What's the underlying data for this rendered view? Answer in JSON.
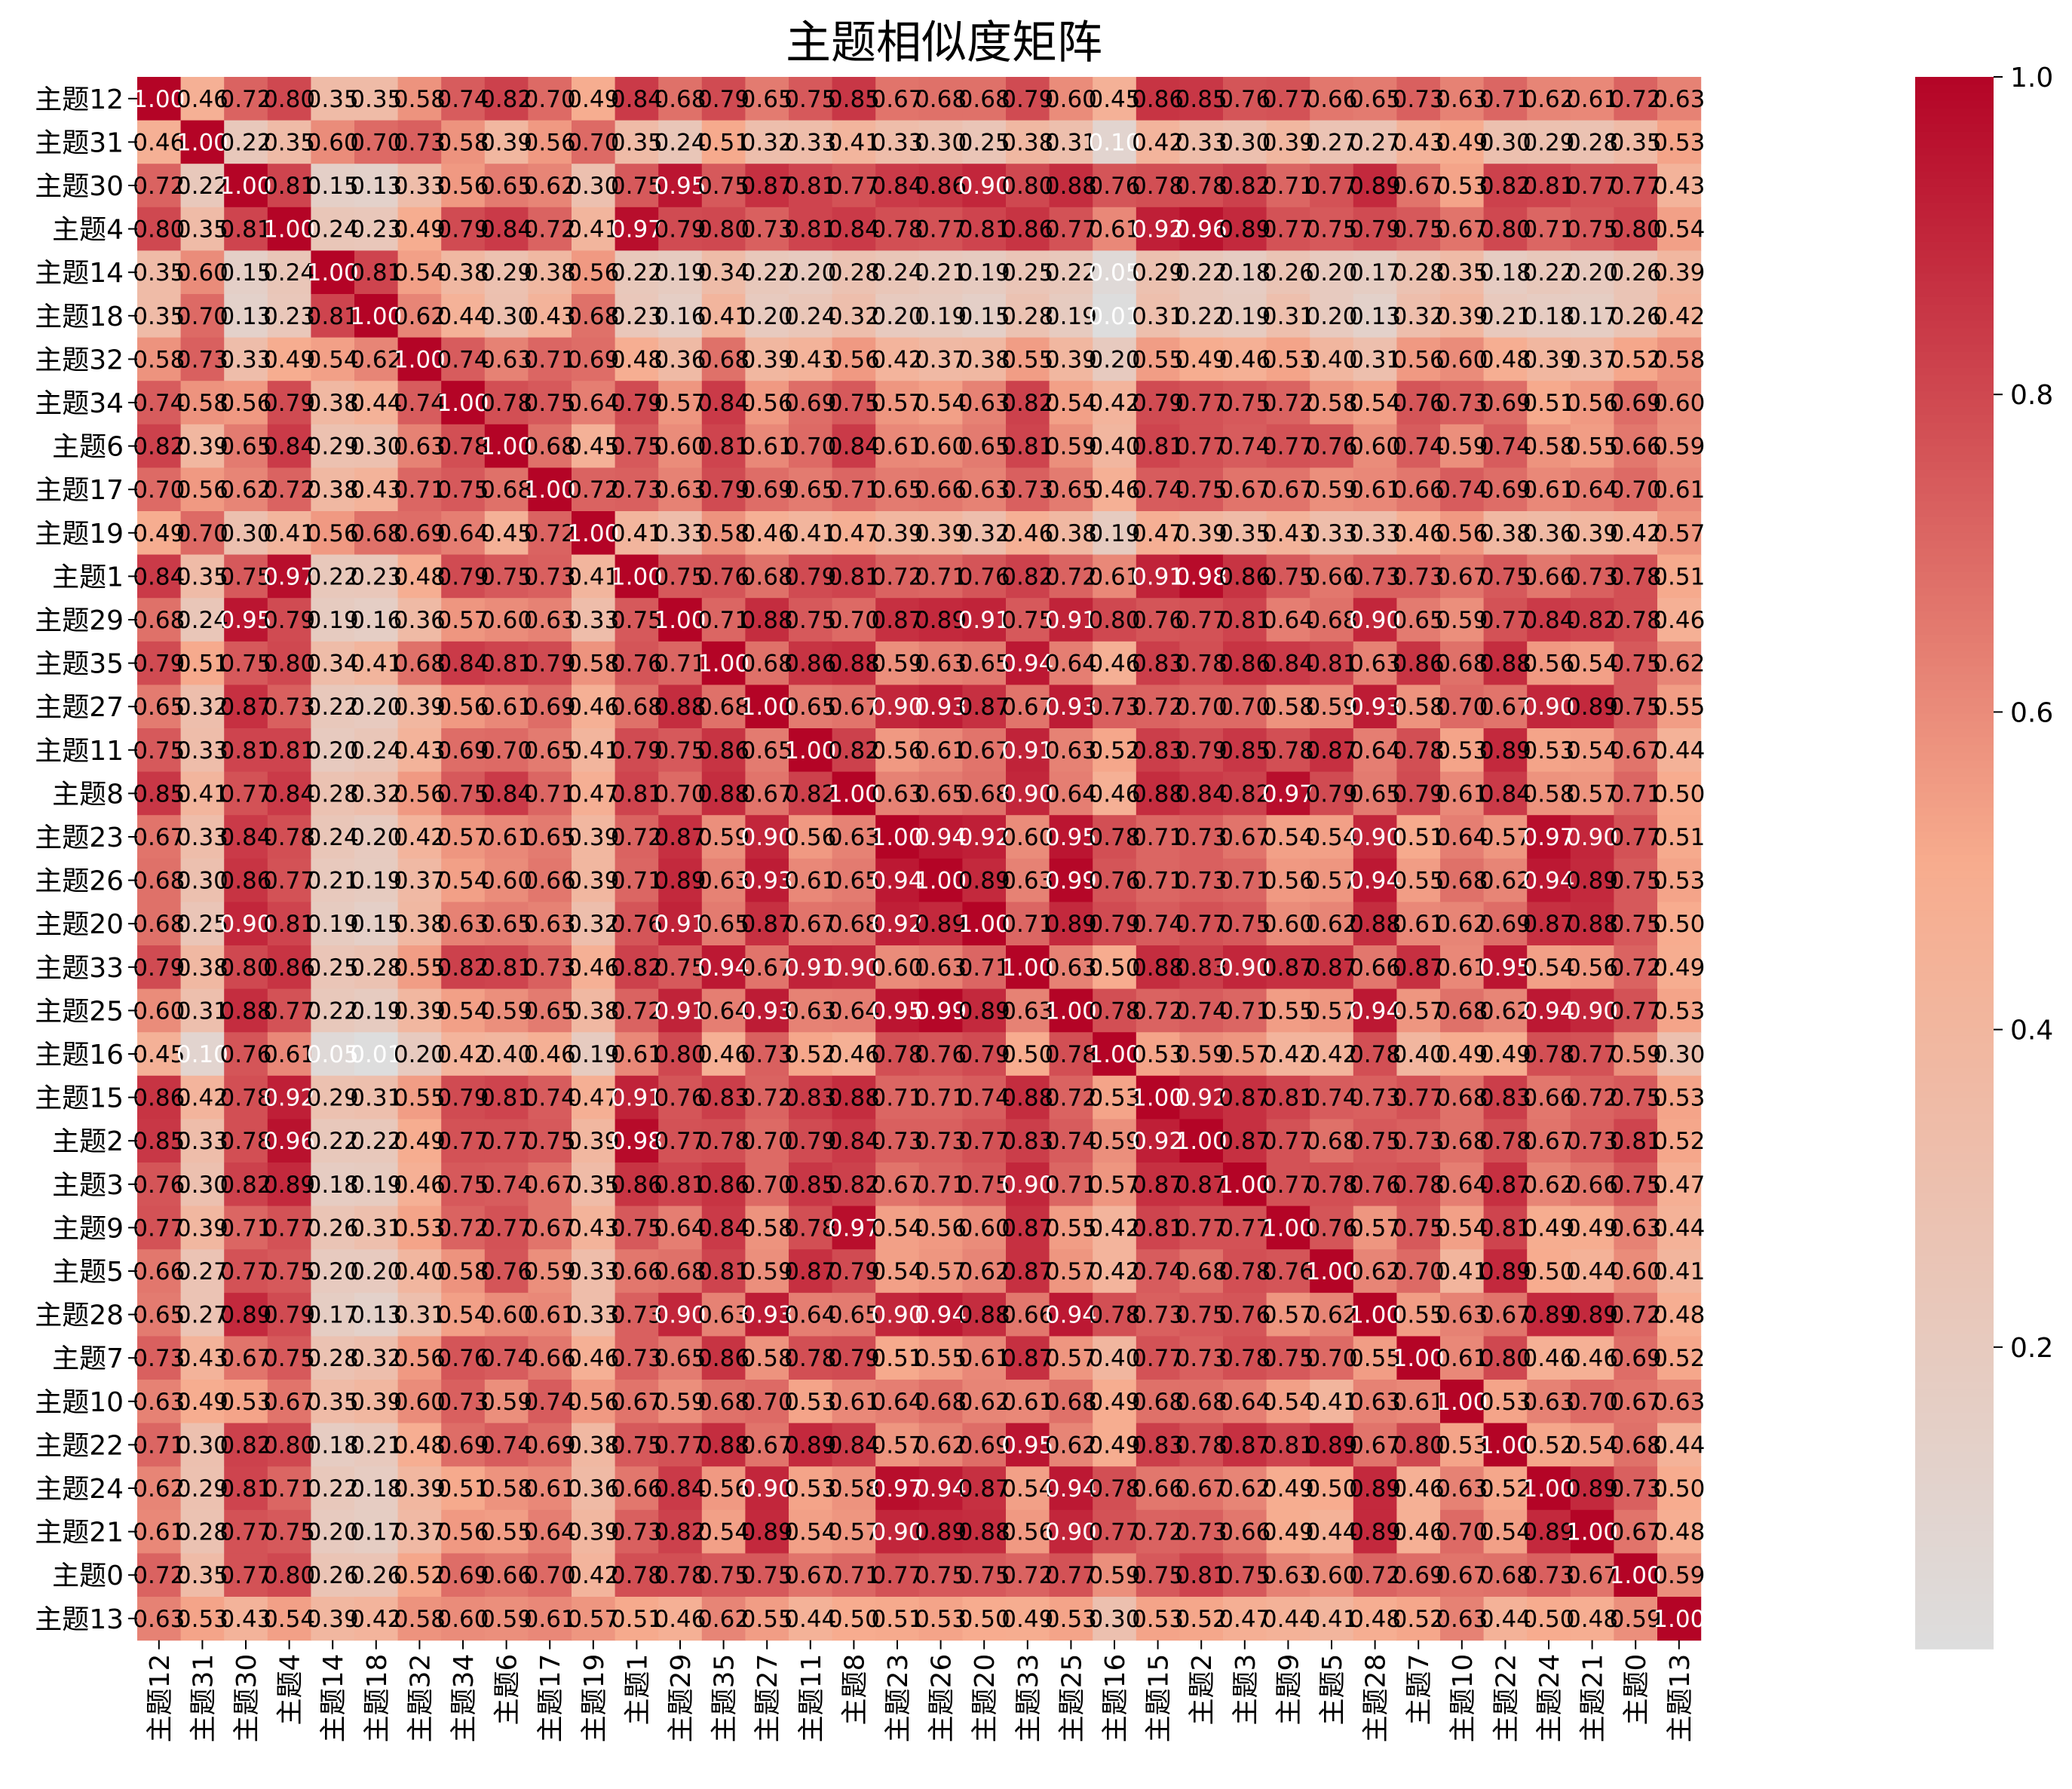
{
  "chart_data": {
    "type": "heatmap",
    "title": "主题相似度矩阵",
    "xlabel": "",
    "ylabel": "",
    "labels": [
      "主题12",
      "主题31",
      "主题30",
      "主题4",
      "主题14",
      "主题18",
      "主题32",
      "主题34",
      "主题6",
      "主题17",
      "主题19",
      "主题1",
      "主题29",
      "主题35",
      "主题27",
      "主题11",
      "主题8",
      "主题23",
      "主题26",
      "主题20",
      "主题33",
      "主题25",
      "主题16",
      "主题15",
      "主题2",
      "主题3",
      "主题9",
      "主题5",
      "主题28",
      "主题7",
      "主题10",
      "主题22",
      "主题24",
      "主题21",
      "主题0",
      "主题13"
    ],
    "matrix": [
      [
        1.0,
        0.46,
        0.72,
        0.8,
        0.35,
        0.35,
        0.58,
        0.74,
        0.82,
        0.7,
        0.49,
        0.84,
        0.68,
        0.79,
        0.65,
        0.75,
        0.85,
        0.67,
        0.68,
        0.68,
        0.79,
        0.6,
        0.45,
        0.86,
        0.85,
        0.76,
        0.77,
        0.66,
        0.65,
        0.73,
        0.63,
        0.71,
        0.62,
        0.61,
        0.72,
        0.63
      ],
      [
        0.46,
        1.0,
        0.22,
        0.35,
        0.6,
        0.7,
        0.73,
        0.58,
        0.39,
        0.56,
        0.7,
        0.35,
        0.24,
        0.51,
        0.32,
        0.33,
        0.41,
        0.33,
        0.3,
        0.25,
        0.38,
        0.31,
        0.1,
        0.42,
        0.33,
        0.3,
        0.39,
        0.27,
        0.27,
        0.43,
        0.49,
        0.3,
        0.29,
        0.28,
        0.35,
        0.53
      ],
      [
        0.72,
        0.22,
        1.0,
        0.81,
        0.15,
        0.13,
        0.33,
        0.56,
        0.65,
        0.62,
        0.3,
        0.75,
        0.95,
        0.75,
        0.87,
        0.81,
        0.77,
        0.84,
        0.86,
        0.9,
        0.8,
        0.88,
        0.76,
        0.78,
        0.78,
        0.82,
        0.71,
        0.77,
        0.89,
        0.67,
        0.53,
        0.82,
        0.81,
        0.77,
        0.77,
        0.43
      ],
      [
        0.8,
        0.35,
        0.81,
        1.0,
        0.24,
        0.23,
        0.49,
        0.79,
        0.84,
        0.72,
        0.41,
        0.97,
        0.79,
        0.8,
        0.73,
        0.81,
        0.84,
        0.78,
        0.77,
        0.81,
        0.86,
        0.77,
        0.61,
        0.92,
        0.96,
        0.89,
        0.77,
        0.75,
        0.79,
        0.75,
        0.67,
        0.8,
        0.71,
        0.75,
        0.8,
        0.54
      ],
      [
        0.35,
        0.6,
        0.15,
        0.24,
        1.0,
        0.81,
        0.54,
        0.38,
        0.29,
        0.38,
        0.56,
        0.22,
        0.19,
        0.34,
        0.22,
        0.2,
        0.28,
        0.24,
        0.21,
        0.19,
        0.25,
        0.22,
        0.05,
        0.29,
        0.22,
        0.18,
        0.26,
        0.2,
        0.17,
        0.28,
        0.35,
        0.18,
        0.22,
        0.2,
        0.26,
        0.39
      ],
      [
        0.35,
        0.7,
        0.13,
        0.23,
        0.81,
        1.0,
        0.62,
        0.44,
        0.3,
        0.43,
        0.68,
        0.23,
        0.16,
        0.41,
        0.2,
        0.24,
        0.32,
        0.2,
        0.19,
        0.15,
        0.28,
        0.19,
        0.01,
        0.31,
        0.22,
        0.19,
        0.31,
        0.2,
        0.13,
        0.32,
        0.39,
        0.21,
        0.18,
        0.17,
        0.26,
        0.42
      ],
      [
        0.58,
        0.73,
        0.33,
        0.49,
        0.54,
        0.62,
        1.0,
        0.74,
        0.63,
        0.71,
        0.69,
        0.48,
        0.36,
        0.68,
        0.39,
        0.43,
        0.56,
        0.42,
        0.37,
        0.38,
        0.55,
        0.39,
        0.2,
        0.55,
        0.49,
        0.46,
        0.53,
        0.4,
        0.31,
        0.56,
        0.6,
        0.48,
        0.39,
        0.37,
        0.52,
        0.58
      ],
      [
        0.74,
        0.58,
        0.56,
        0.79,
        0.38,
        0.44,
        0.74,
        1.0,
        0.78,
        0.75,
        0.64,
        0.79,
        0.57,
        0.84,
        0.56,
        0.69,
        0.75,
        0.57,
        0.54,
        0.63,
        0.82,
        0.54,
        0.42,
        0.79,
        0.77,
        0.75,
        0.72,
        0.58,
        0.54,
        0.76,
        0.73,
        0.69,
        0.51,
        0.56,
        0.69,
        0.6
      ],
      [
        0.82,
        0.39,
        0.65,
        0.84,
        0.29,
        0.3,
        0.63,
        0.78,
        1.0,
        0.68,
        0.45,
        0.75,
        0.6,
        0.81,
        0.61,
        0.7,
        0.84,
        0.61,
        0.6,
        0.65,
        0.81,
        0.59,
        0.4,
        0.81,
        0.77,
        0.74,
        0.77,
        0.76,
        0.6,
        0.74,
        0.59,
        0.74,
        0.58,
        0.55,
        0.66,
        0.59
      ],
      [
        0.7,
        0.56,
        0.62,
        0.72,
        0.38,
        0.43,
        0.71,
        0.75,
        0.68,
        1.0,
        0.72,
        0.73,
        0.63,
        0.79,
        0.69,
        0.65,
        0.71,
        0.65,
        0.66,
        0.63,
        0.73,
        0.65,
        0.46,
        0.74,
        0.75,
        0.67,
        0.67,
        0.59,
        0.61,
        0.66,
        0.74,
        0.69,
        0.61,
        0.64,
        0.7,
        0.61
      ],
      [
        0.49,
        0.7,
        0.3,
        0.41,
        0.56,
        0.68,
        0.69,
        0.64,
        0.45,
        0.72,
        1.0,
        0.41,
        0.33,
        0.58,
        0.46,
        0.41,
        0.47,
        0.39,
        0.39,
        0.32,
        0.46,
        0.38,
        0.19,
        0.47,
        0.39,
        0.35,
        0.43,
        0.33,
        0.33,
        0.46,
        0.56,
        0.38,
        0.36,
        0.39,
        0.42,
        0.57
      ],
      [
        0.84,
        0.35,
        0.75,
        0.97,
        0.22,
        0.23,
        0.48,
        0.79,
        0.75,
        0.73,
        0.41,
        1.0,
        0.75,
        0.76,
        0.68,
        0.79,
        0.81,
        0.72,
        0.71,
        0.76,
        0.82,
        0.72,
        0.61,
        0.91,
        0.98,
        0.86,
        0.75,
        0.66,
        0.73,
        0.73,
        0.67,
        0.75,
        0.66,
        0.73,
        0.78,
        0.51
      ],
      [
        0.68,
        0.24,
        0.95,
        0.79,
        0.19,
        0.16,
        0.36,
        0.57,
        0.6,
        0.63,
        0.33,
        0.75,
        1.0,
        0.71,
        0.88,
        0.75,
        0.7,
        0.87,
        0.89,
        0.91,
        0.75,
        0.91,
        0.8,
        0.76,
        0.77,
        0.81,
        0.64,
        0.68,
        0.9,
        0.65,
        0.59,
        0.77,
        0.84,
        0.82,
        0.78,
        0.46
      ],
      [
        0.79,
        0.51,
        0.75,
        0.8,
        0.34,
        0.41,
        0.68,
        0.84,
        0.81,
        0.79,
        0.58,
        0.76,
        0.71,
        1.0,
        0.68,
        0.86,
        0.88,
        0.59,
        0.63,
        0.65,
        0.94,
        0.64,
        0.46,
        0.83,
        0.78,
        0.86,
        0.84,
        0.81,
        0.63,
        0.86,
        0.68,
        0.88,
        0.56,
        0.54,
        0.75,
        0.62
      ],
      [
        0.65,
        0.32,
        0.87,
        0.73,
        0.22,
        0.2,
        0.39,
        0.56,
        0.61,
        0.69,
        0.46,
        0.68,
        0.88,
        0.68,
        1.0,
        0.65,
        0.67,
        0.9,
        0.93,
        0.87,
        0.67,
        0.93,
        0.73,
        0.72,
        0.7,
        0.7,
        0.58,
        0.59,
        0.93,
        0.58,
        0.7,
        0.67,
        0.9,
        0.89,
        0.75,
        0.55
      ],
      [
        0.75,
        0.33,
        0.81,
        0.81,
        0.2,
        0.24,
        0.43,
        0.69,
        0.7,
        0.65,
        0.41,
        0.79,
        0.75,
        0.86,
        0.65,
        1.0,
        0.82,
        0.56,
        0.61,
        0.67,
        0.91,
        0.63,
        0.52,
        0.83,
        0.79,
        0.85,
        0.78,
        0.87,
        0.64,
        0.78,
        0.53,
        0.89,
        0.53,
        0.54,
        0.67,
        0.44
      ],
      [
        0.85,
        0.41,
        0.77,
        0.84,
        0.28,
        0.32,
        0.56,
        0.75,
        0.84,
        0.71,
        0.47,
        0.81,
        0.7,
        0.88,
        0.67,
        0.82,
        1.0,
        0.63,
        0.65,
        0.68,
        0.9,
        0.64,
        0.46,
        0.88,
        0.84,
        0.82,
        0.97,
        0.79,
        0.65,
        0.79,
        0.61,
        0.84,
        0.58,
        0.57,
        0.71,
        0.5
      ],
      [
        0.67,
        0.33,
        0.84,
        0.78,
        0.24,
        0.2,
        0.42,
        0.57,
        0.61,
        0.65,
        0.39,
        0.72,
        0.87,
        0.59,
        0.9,
        0.56,
        0.63,
        1.0,
        0.94,
        0.92,
        0.6,
        0.95,
        0.78,
        0.71,
        0.73,
        0.67,
        0.54,
        0.54,
        0.9,
        0.51,
        0.64,
        0.57,
        0.97,
        0.9,
        0.77,
        0.51
      ],
      [
        0.68,
        0.3,
        0.86,
        0.77,
        0.21,
        0.19,
        0.37,
        0.54,
        0.6,
        0.66,
        0.39,
        0.71,
        0.89,
        0.63,
        0.93,
        0.61,
        0.65,
        0.94,
        1.0,
        0.89,
        0.63,
        0.99,
        0.76,
        0.71,
        0.73,
        0.71,
        0.56,
        0.57,
        0.94,
        0.55,
        0.68,
        0.62,
        0.94,
        0.89,
        0.75,
        0.53
      ],
      [
        0.68,
        0.25,
        0.9,
        0.81,
        0.19,
        0.15,
        0.38,
        0.63,
        0.65,
        0.63,
        0.32,
        0.76,
        0.91,
        0.65,
        0.87,
        0.67,
        0.68,
        0.92,
        0.89,
        1.0,
        0.71,
        0.89,
        0.79,
        0.74,
        0.77,
        0.75,
        0.6,
        0.62,
        0.88,
        0.61,
        0.62,
        0.69,
        0.87,
        0.88,
        0.75,
        0.5
      ],
      [
        0.79,
        0.38,
        0.8,
        0.86,
        0.25,
        0.28,
        0.55,
        0.82,
        0.81,
        0.73,
        0.46,
        0.82,
        0.75,
        0.94,
        0.67,
        0.91,
        0.9,
        0.6,
        0.63,
        0.71,
        1.0,
        0.63,
        0.5,
        0.88,
        0.83,
        0.9,
        0.87,
        0.87,
        0.66,
        0.87,
        0.61,
        0.95,
        0.54,
        0.56,
        0.72,
        0.49
      ],
      [
        0.6,
        0.31,
        0.88,
        0.77,
        0.22,
        0.19,
        0.39,
        0.54,
        0.59,
        0.65,
        0.38,
        0.72,
        0.91,
        0.64,
        0.93,
        0.63,
        0.64,
        0.95,
        0.99,
        0.89,
        0.63,
        1.0,
        0.78,
        0.72,
        0.74,
        0.71,
        0.55,
        0.57,
        0.94,
        0.57,
        0.68,
        0.62,
        0.94,
        0.9,
        0.77,
        0.53
      ],
      [
        0.45,
        0.1,
        0.76,
        0.61,
        0.05,
        0.01,
        0.2,
        0.42,
        0.4,
        0.46,
        0.19,
        0.61,
        0.8,
        0.46,
        0.73,
        0.52,
        0.46,
        0.78,
        0.76,
        0.79,
        0.5,
        0.78,
        1.0,
        0.53,
        0.59,
        0.57,
        0.42,
        0.42,
        0.78,
        0.4,
        0.49,
        0.49,
        0.78,
        0.77,
        0.59,
        0.3
      ],
      [
        0.86,
        0.42,
        0.78,
        0.92,
        0.29,
        0.31,
        0.55,
        0.79,
        0.81,
        0.74,
        0.47,
        0.91,
        0.76,
        0.83,
        0.72,
        0.83,
        0.88,
        0.71,
        0.71,
        0.74,
        0.88,
        0.72,
        0.53,
        1.0,
        0.92,
        0.87,
        0.81,
        0.74,
        0.73,
        0.77,
        0.68,
        0.83,
        0.66,
        0.72,
        0.75,
        0.53
      ],
      [
        0.85,
        0.33,
        0.78,
        0.96,
        0.22,
        0.22,
        0.49,
        0.77,
        0.77,
        0.75,
        0.39,
        0.98,
        0.77,
        0.78,
        0.7,
        0.79,
        0.84,
        0.73,
        0.73,
        0.77,
        0.83,
        0.74,
        0.59,
        0.92,
        1.0,
        0.87,
        0.77,
        0.68,
        0.75,
        0.73,
        0.68,
        0.78,
        0.67,
        0.73,
        0.81,
        0.52
      ],
      [
        0.76,
        0.3,
        0.82,
        0.89,
        0.18,
        0.19,
        0.46,
        0.75,
        0.74,
        0.67,
        0.35,
        0.86,
        0.81,
        0.86,
        0.7,
        0.85,
        0.82,
        0.67,
        0.71,
        0.75,
        0.9,
        0.71,
        0.57,
        0.87,
        0.87,
        1.0,
        0.77,
        0.78,
        0.76,
        0.78,
        0.64,
        0.87,
        0.62,
        0.66,
        0.75,
        0.47
      ],
      [
        0.77,
        0.39,
        0.71,
        0.77,
        0.26,
        0.31,
        0.53,
        0.72,
        0.77,
        0.67,
        0.43,
        0.75,
        0.64,
        0.84,
        0.58,
        0.78,
        0.97,
        0.54,
        0.56,
        0.6,
        0.87,
        0.55,
        0.42,
        0.81,
        0.77,
        0.77,
        1.0,
        0.76,
        0.57,
        0.75,
        0.54,
        0.81,
        0.49,
        0.49,
        0.63,
        0.44
      ],
      [
        0.66,
        0.27,
        0.77,
        0.75,
        0.2,
        0.2,
        0.4,
        0.58,
        0.76,
        0.59,
        0.33,
        0.66,
        0.68,
        0.81,
        0.59,
        0.87,
        0.79,
        0.54,
        0.57,
        0.62,
        0.87,
        0.57,
        0.42,
        0.74,
        0.68,
        0.78,
        0.76,
        1.0,
        0.62,
        0.7,
        0.41,
        0.89,
        0.5,
        0.44,
        0.6,
        0.41
      ],
      [
        0.65,
        0.27,
        0.89,
        0.79,
        0.17,
        0.13,
        0.31,
        0.54,
        0.6,
        0.61,
        0.33,
        0.73,
        0.9,
        0.63,
        0.93,
        0.64,
        0.65,
        0.9,
        0.94,
        0.88,
        0.66,
        0.94,
        0.78,
        0.73,
        0.75,
        0.76,
        0.57,
        0.62,
        1.0,
        0.55,
        0.63,
        0.67,
        0.89,
        0.89,
        0.72,
        0.48
      ],
      [
        0.73,
        0.43,
        0.67,
        0.75,
        0.28,
        0.32,
        0.56,
        0.76,
        0.74,
        0.66,
        0.46,
        0.73,
        0.65,
        0.86,
        0.58,
        0.78,
        0.79,
        0.51,
        0.55,
        0.61,
        0.87,
        0.57,
        0.4,
        0.77,
        0.73,
        0.78,
        0.75,
        0.7,
        0.55,
        1.0,
        0.61,
        0.8,
        0.46,
        0.46,
        0.69,
        0.52
      ],
      [
        0.63,
        0.49,
        0.53,
        0.67,
        0.35,
        0.39,
        0.6,
        0.73,
        0.59,
        0.74,
        0.56,
        0.67,
        0.59,
        0.68,
        0.7,
        0.53,
        0.61,
        0.64,
        0.68,
        0.62,
        0.61,
        0.68,
        0.49,
        0.68,
        0.68,
        0.64,
        0.54,
        0.41,
        0.63,
        0.61,
        1.0,
        0.53,
        0.63,
        0.7,
        0.67,
        0.63
      ],
      [
        0.71,
        0.3,
        0.82,
        0.8,
        0.18,
        0.21,
        0.48,
        0.69,
        0.74,
        0.69,
        0.38,
        0.75,
        0.77,
        0.88,
        0.67,
        0.89,
        0.84,
        0.57,
        0.62,
        0.69,
        0.95,
        0.62,
        0.49,
        0.83,
        0.78,
        0.87,
        0.81,
        0.89,
        0.67,
        0.8,
        0.53,
        1.0,
        0.52,
        0.54,
        0.68,
        0.44
      ],
      [
        0.62,
        0.29,
        0.81,
        0.71,
        0.22,
        0.18,
        0.39,
        0.51,
        0.58,
        0.61,
        0.36,
        0.66,
        0.84,
        0.56,
        0.9,
        0.53,
        0.58,
        0.97,
        0.94,
        0.87,
        0.54,
        0.94,
        0.78,
        0.66,
        0.67,
        0.62,
        0.49,
        0.5,
        0.89,
        0.46,
        0.63,
        0.52,
        1.0,
        0.89,
        0.73,
        0.5
      ],
      [
        0.61,
        0.28,
        0.77,
        0.75,
        0.2,
        0.17,
        0.37,
        0.56,
        0.55,
        0.64,
        0.39,
        0.73,
        0.82,
        0.54,
        0.89,
        0.54,
        0.57,
        0.9,
        0.89,
        0.88,
        0.56,
        0.9,
        0.77,
        0.72,
        0.73,
        0.66,
        0.49,
        0.44,
        0.89,
        0.46,
        0.7,
        0.54,
        0.89,
        1.0,
        0.67,
        0.48
      ],
      [
        0.72,
        0.35,
        0.77,
        0.8,
        0.26,
        0.26,
        0.52,
        0.69,
        0.66,
        0.7,
        0.42,
        0.78,
        0.78,
        0.75,
        0.75,
        0.67,
        0.71,
        0.77,
        0.75,
        0.75,
        0.72,
        0.77,
        0.59,
        0.75,
        0.81,
        0.75,
        0.63,
        0.6,
        0.72,
        0.69,
        0.67,
        0.68,
        0.73,
        0.67,
        1.0,
        0.59
      ],
      [
        0.63,
        0.53,
        0.43,
        0.54,
        0.39,
        0.42,
        0.58,
        0.6,
        0.59,
        0.61,
        0.57,
        0.51,
        0.46,
        0.62,
        0.55,
        0.44,
        0.5,
        0.51,
        0.53,
        0.5,
        0.49,
        0.53,
        0.3,
        0.53,
        0.52,
        0.47,
        0.44,
        0.41,
        0.48,
        0.52,
        0.63,
        0.44,
        0.5,
        0.48,
        0.59,
        1.0
      ]
    ],
    "colorbar": {
      "vmin": 0.01,
      "vmax": 1.0,
      "ticks": [
        0.2,
        0.4,
        0.6,
        0.8,
        1.0
      ],
      "tick_labels": [
        "0.2",
        "0.4",
        "0.6",
        "0.8",
        "1.0"
      ]
    },
    "colormap": {
      "low": "#dddddd",
      "mid": "#f7ac8e",
      "high": "#b40426"
    },
    "grid": false,
    "legend": "colorbar-right"
  }
}
